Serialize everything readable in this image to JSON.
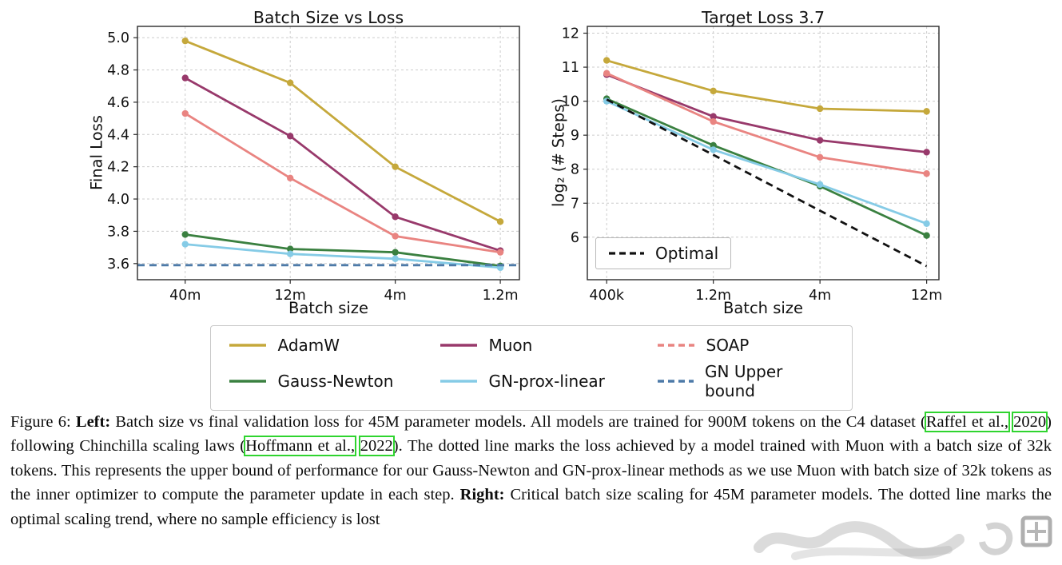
{
  "figure": {
    "caption_segments": [
      {
        "text": "Figure 6: ",
        "style": "normal"
      },
      {
        "text": "Left:",
        "style": "bold"
      },
      {
        "text": " Batch size vs final validation loss for 45M parameter models. All models are trained for 900M tokens on the C4 dataset (",
        "style": "normal"
      },
      {
        "text": "Raffel et al.,",
        "style": "link"
      },
      {
        "text": " ",
        "style": "normal"
      },
      {
        "text": "2020",
        "style": "link"
      },
      {
        "text": ") following Chinchilla scaling laws (",
        "style": "normal"
      },
      {
        "text": "Hoffmann et al.,",
        "style": "link"
      },
      {
        "text": " ",
        "style": "normal"
      },
      {
        "text": "2022",
        "style": "link"
      },
      {
        "text": "). The dotted line marks the loss achieved by a model trained with Muon with a batch size of 32k tokens. This represents the upper bound of performance for our Gauss-Newton and GN-prox-linear methods as we use Muon with batch size of 32k tokens as the inner optimizer to compute the parameter update in each step. ",
        "style": "normal"
      },
      {
        "text": "Right:",
        "style": "bold"
      },
      {
        "text": " Critical batch size scaling for 45M parameter models. The dotted line marks the optimal scaling trend, where no sample efficiency is lost",
        "style": "normal"
      }
    ]
  },
  "legend": {
    "items": [
      {
        "label": "AdamW",
        "color": "#c5a83b",
        "dashed": false
      },
      {
        "label": "Muon",
        "color": "#98396b",
        "dashed": false
      },
      {
        "label": "SOAP",
        "color": "#e98481",
        "dashed": true
      },
      {
        "label": "Gauss-Newton",
        "color": "#3a8040",
        "dashed": false
      },
      {
        "label": "GN-prox-linear",
        "color": "#85cbe6",
        "dashed": false
      },
      {
        "label": "GN Upper bound",
        "color": "#4d7aa8",
        "dashed": true
      }
    ]
  },
  "chart_data": [
    {
      "type": "line",
      "title": "Batch Size vs Loss",
      "xlabel": "Batch size",
      "ylabel": "Final Loss",
      "categories": [
        "40m",
        "12m",
        "4m",
        "1.2m"
      ],
      "ylim": [
        3.5,
        5.07
      ],
      "yticks": [
        3.6,
        3.8,
        4.0,
        4.2,
        4.4,
        4.6,
        4.8,
        5.0
      ],
      "ytick_decimals": 1,
      "grid": true,
      "series": [
        {
          "name": "AdamW",
          "color": "#c5a83b",
          "values": [
            4.98,
            4.72,
            4.2,
            3.86
          ]
        },
        {
          "name": "Muon",
          "color": "#98396b",
          "values": [
            4.75,
            4.39,
            3.89,
            3.68
          ]
        },
        {
          "name": "SOAP",
          "color": "#e98481",
          "values": [
            4.53,
            4.13,
            3.77,
            3.67
          ]
        },
        {
          "name": "Gauss-Newton",
          "color": "#3a8040",
          "values": [
            3.78,
            3.69,
            3.67,
            3.585
          ]
        },
        {
          "name": "GN-prox-linear",
          "color": "#85cbe6",
          "values": [
            3.72,
            3.66,
            3.63,
            3.575
          ]
        },
        {
          "name": "GN Upper bound",
          "color": "#4d7aa8",
          "values": [
            3.59,
            3.59,
            3.59,
            3.59
          ],
          "dashed": true,
          "marker": false,
          "full_width": true
        }
      ]
    },
    {
      "type": "line",
      "title": "Target Loss 3.7",
      "xlabel": "Batch size",
      "ylabel": "log₂ (# Steps)",
      "categories": [
        "400k",
        "1.2m",
        "4m",
        "12m"
      ],
      "ylim": [
        4.75,
        12.2
      ],
      "yticks": [
        6,
        7,
        8,
        9,
        10,
        11,
        12
      ],
      "ytick_decimals": 0,
      "grid": true,
      "inner_legend": {
        "label": "Optimal"
      },
      "series": [
        {
          "name": "AdamW",
          "color": "#c5a83b",
          "values": [
            11.2,
            10.3,
            9.78,
            9.7
          ]
        },
        {
          "name": "Muon",
          "color": "#98396b",
          "values": [
            10.78,
            9.55,
            8.85,
            8.5
          ]
        },
        {
          "name": "SOAP",
          "color": "#e98481",
          "values": [
            10.82,
            9.4,
            8.35,
            7.87
          ]
        },
        {
          "name": "Gauss-Newton",
          "color": "#3a8040",
          "values": [
            10.07,
            8.7,
            7.5,
            6.05
          ]
        },
        {
          "name": "GN-prox-linear",
          "color": "#85cbe6",
          "values": [
            10.0,
            8.57,
            7.55,
            6.4
          ]
        },
        {
          "name": "Optimal",
          "color": "#111111",
          "values": [
            10.05,
            8.42,
            6.78,
            5.15
          ],
          "dashed": true,
          "marker": false
        }
      ]
    }
  ]
}
